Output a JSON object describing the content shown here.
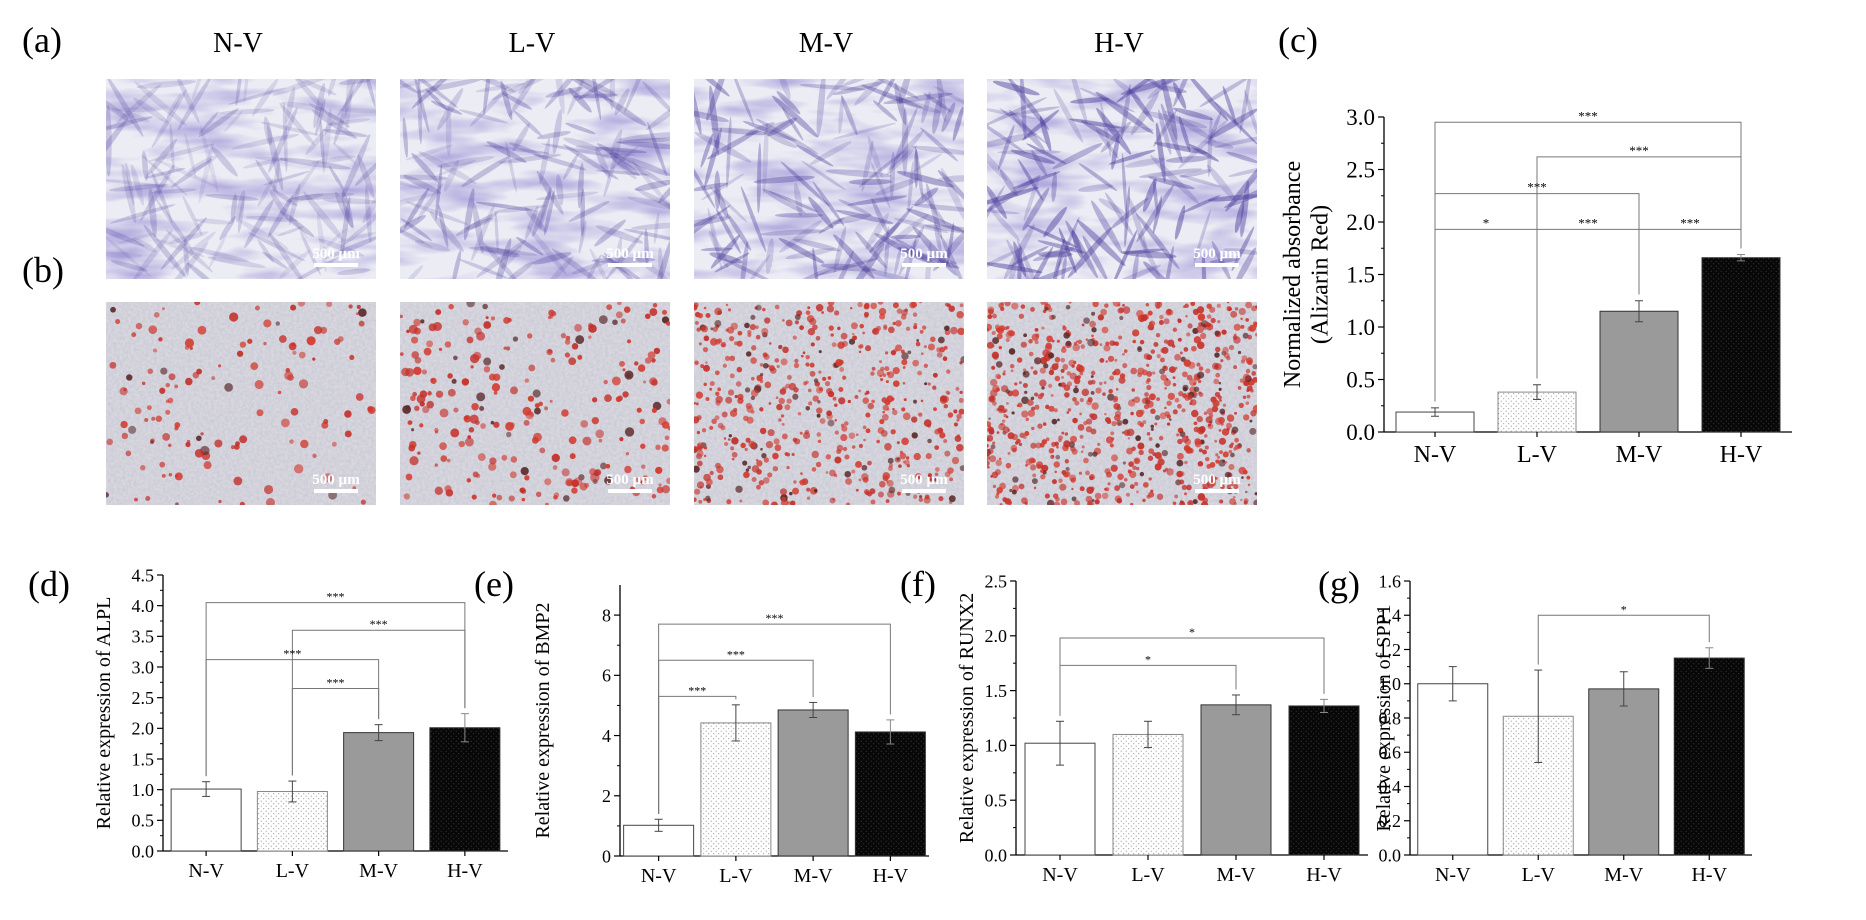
{
  "panels": {
    "a": "(a)",
    "b": "(b)",
    "c": "(c)",
    "d": "(d)",
    "e": "(e)",
    "f": "(f)",
    "g": "(g)"
  },
  "micrographs": {
    "column_headers": [
      "N-V",
      "L-V",
      "M-V",
      "H-V"
    ],
    "scale_bar_text": "500 µm",
    "row_a_stain_color": "#6a61b5",
    "row_b_stain_color": "#d23a2e",
    "row_b_red_coverage": [
      0.08,
      0.22,
      0.55,
      0.85
    ]
  },
  "chart_data": [
    {
      "id": "c",
      "type": "bar",
      "panel_label": "(c)",
      "categories": [
        "N-V",
        "L-V",
        "M-V",
        "H-V"
      ],
      "values": [
        0.19,
        0.38,
        1.15,
        1.66
      ],
      "errors": [
        0.04,
        0.07,
        0.1,
        0.03
      ],
      "title": "",
      "xlabel": "",
      "ylabel": "Normalized absorbance\n(Alizarin Red)",
      "ylim": [
        0,
        3.0
      ],
      "yticks": [
        "0.0",
        "0.5",
        "1.0",
        "1.5",
        "2.0",
        "2.5",
        "3.0"
      ],
      "significance": [
        {
          "from": 0,
          "to": 3,
          "text": "***",
          "y": 2.95
        },
        {
          "from": 1,
          "to": 3,
          "text": "***",
          "y": 2.62
        },
        {
          "from": 0,
          "to": 2,
          "text": "***",
          "y": 2.27
        },
        {
          "from": 0,
          "to": 1,
          "text": "*",
          "y": 1.93
        },
        {
          "from": 1,
          "to": 2,
          "text": "***",
          "y": 1.93
        },
        {
          "from": 2,
          "to": 3,
          "text": "***",
          "y": 1.93
        }
      ]
    },
    {
      "id": "d",
      "type": "bar",
      "panel_label": "(d)",
      "categories": [
        "N-V",
        "L-V",
        "M-V",
        "H-V"
      ],
      "values": [
        1.01,
        0.97,
        1.93,
        2.01
      ],
      "errors": [
        0.12,
        0.17,
        0.13,
        0.23
      ],
      "title": "",
      "xlabel": "",
      "ylabel": "Relative expression of  ALPL",
      "ylim": [
        0,
        4.5
      ],
      "yticks": [
        "0.0",
        "0.5",
        "1.0",
        "1.5",
        "2.0",
        "2.5",
        "3.0",
        "3.5",
        "4.0",
        "4.5"
      ],
      "significance": [
        {
          "from": 0,
          "to": 3,
          "text": "***",
          "y": 4.05
        },
        {
          "from": 1,
          "to": 3,
          "text": "***",
          "y": 3.6
        },
        {
          "from": 0,
          "to": 2,
          "text": "***",
          "y": 3.12
        },
        {
          "from": 1,
          "to": 2,
          "text": "***",
          "y": 2.65
        }
      ]
    },
    {
      "id": "e",
      "type": "bar",
      "panel_label": "(e)",
      "categories": [
        "N-V",
        "L-V",
        "M-V",
        "H-V"
      ],
      "values": [
        1.02,
        4.42,
        4.85,
        4.12
      ],
      "errors": [
        0.2,
        0.6,
        0.25,
        0.4
      ],
      "title": "",
      "xlabel": "",
      "ylabel": "Relative expression of  BMP2",
      "ylim": [
        0,
        9
      ],
      "yticks": [
        "0",
        "2",
        "4",
        "6",
        "8"
      ],
      "ytick_values": [
        0,
        2,
        4,
        6,
        8
      ],
      "significance": [
        {
          "from": 0,
          "to": 3,
          "text": "***",
          "y": 7.7
        },
        {
          "from": 0,
          "to": 2,
          "text": "***",
          "y": 6.5
        },
        {
          "from": 0,
          "to": 1,
          "text": "***",
          "y": 5.3
        }
      ]
    },
    {
      "id": "f",
      "type": "bar",
      "panel_label": "(f)",
      "categories": [
        "N-V",
        "L-V",
        "M-V",
        "H-V"
      ],
      "values": [
        1.02,
        1.1,
        1.37,
        1.36
      ],
      "errors": [
        0.2,
        0.12,
        0.09,
        0.06
      ],
      "title": "",
      "xlabel": "",
      "ylabel": "Relative expression of  RUNX2",
      "ylim": [
        0,
        2.5
      ],
      "yticks": [
        "0.0",
        "0.5",
        "1.0",
        "1.5",
        "2.0",
        "2.5"
      ],
      "significance": [
        {
          "from": 0,
          "to": 3,
          "text": "*",
          "y": 1.98
        },
        {
          "from": 0,
          "to": 2,
          "text": "*",
          "y": 1.73
        }
      ]
    },
    {
      "id": "g",
      "type": "bar",
      "panel_label": "(g)",
      "categories": [
        "N-V",
        "L-V",
        "M-V",
        "H-V"
      ],
      "values": [
        1.0,
        0.81,
        0.97,
        1.15
      ],
      "errors": [
        0.1,
        0.27,
        0.1,
        0.06
      ],
      "title": "",
      "xlabel": "",
      "ylabel": "Relative expression of  SPP1",
      "ylim": [
        0,
        1.6
      ],
      "yticks": [
        "0.0",
        "0.2",
        "0.4",
        "0.6",
        "0.8",
        "1.0",
        "1.2",
        "1.4",
        "1.6"
      ],
      "significance": [
        {
          "from": 1,
          "to": 3,
          "text": "*",
          "y": 1.4
        }
      ]
    }
  ],
  "bar_styles": [
    "white",
    "dotted-light",
    "gray",
    "black-dotted"
  ],
  "colors": {
    "gray_bar": "#9a9a9a",
    "black_bar": "#0a0a0a",
    "dots_light": "#9a9a9a"
  }
}
